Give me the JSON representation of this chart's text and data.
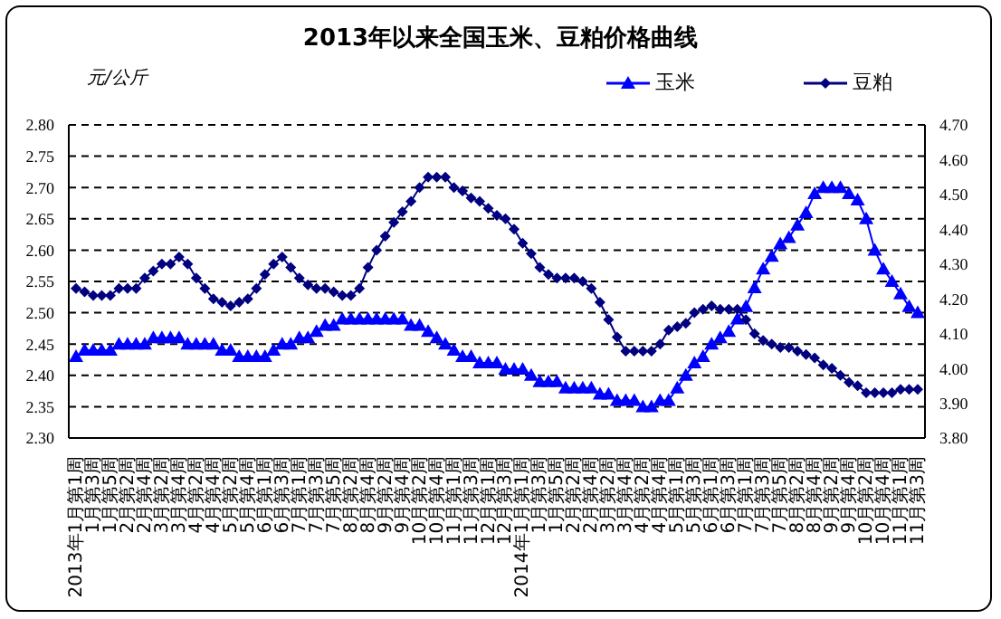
{
  "chart_data": {
    "type": "line",
    "title": "2013年以来全国玉米、豆粕价格曲线",
    "ylabel": "元/公斤",
    "categories": [
      "2013年1月第1周",
      null,
      "1月第3周",
      null,
      "1月第5周",
      null,
      "2月第2周",
      null,
      "2月第4周",
      null,
      "3月第2周",
      null,
      "3月第4周",
      null,
      "4月第2周",
      null,
      "4月第4周",
      null,
      "5月第2周",
      null,
      "5月第4周",
      null,
      "6月第1周",
      null,
      "6月第3周",
      null,
      "7月第1周",
      null,
      "7月第3周",
      null,
      "7月第5周",
      null,
      "8月第2周",
      null,
      "8月第4周",
      null,
      "9月第2周",
      null,
      "9月第4周",
      null,
      "10月第2周",
      null,
      "10月第4周",
      null,
      "11月第1周",
      null,
      "11月第3周",
      null,
      "12月第1周",
      null,
      "12月第3周",
      null,
      "2014年1月第1周",
      null,
      "1月第3周",
      null,
      "1月第5周",
      null,
      "2月第2周",
      null,
      "2月第4周",
      null,
      "3月第2周",
      null,
      "3月第4周",
      null,
      "4月第2周",
      null,
      "4月第4周",
      null,
      "5月第1周",
      null,
      "5月第3周",
      null,
      "6月第1周",
      null,
      "6月第3周",
      null,
      "7月第1周",
      null,
      "7月第3周",
      null,
      "7月第5周",
      null,
      "8月第2周",
      null,
      "8月第4周",
      null,
      "9月第2周",
      null,
      "9月第4周",
      null,
      "10月第2周",
      null,
      "10月第4周",
      null,
      "11月第1周",
      null,
      "11月第3周"
    ],
    "series": [
      {
        "name": "玉米",
        "color": "#0000ff",
        "marker": "triangle",
        "values": [
          2.43,
          2.44,
          2.44,
          2.44,
          2.44,
          2.45,
          2.45,
          2.45,
          2.45,
          2.46,
          2.46,
          2.46,
          2.46,
          2.45,
          2.45,
          2.45,
          2.45,
          2.44,
          2.44,
          2.43,
          2.43,
          2.43,
          2.43,
          2.44,
          2.45,
          2.45,
          2.46,
          2.46,
          2.47,
          2.48,
          2.48,
          2.49,
          2.49,
          2.49,
          2.49,
          2.49,
          2.49,
          2.49,
          2.49,
          2.48,
          2.48,
          2.47,
          2.46,
          2.45,
          2.44,
          2.43,
          2.43,
          2.42,
          2.42,
          2.42,
          2.41,
          2.41,
          2.41,
          2.4,
          2.39,
          2.39,
          2.39,
          2.38,
          2.38,
          2.38,
          2.38,
          2.37,
          2.37,
          2.36,
          2.36,
          2.36,
          2.35,
          2.35,
          2.36,
          2.36,
          2.38,
          2.4,
          2.42,
          2.43,
          2.45,
          2.46,
          2.47,
          2.49,
          2.51,
          2.54,
          2.57,
          2.59,
          2.61,
          2.62,
          2.64,
          2.66,
          2.69,
          2.7,
          2.7,
          2.7,
          2.69,
          2.68,
          2.65,
          2.6,
          2.57,
          2.55,
          2.53,
          2.51,
          2.5
        ]
      },
      {
        "name": "豆粕",
        "color": "#000080",
        "marker": "diamond",
        "axis": "y2",
        "values": [
          4.23,
          4.22,
          4.21,
          4.21,
          4.21,
          4.23,
          4.23,
          4.23,
          4.26,
          4.28,
          4.3,
          4.3,
          4.32,
          4.3,
          4.26,
          4.23,
          4.2,
          4.19,
          4.18,
          4.19,
          4.2,
          4.23,
          4.27,
          4.3,
          4.32,
          4.29,
          4.26,
          4.24,
          4.23,
          4.23,
          4.22,
          4.21,
          4.21,
          4.23,
          4.29,
          4.34,
          4.38,
          4.42,
          4.45,
          4.48,
          4.52,
          4.55,
          4.55,
          4.55,
          4.52,
          4.51,
          4.49,
          4.48,
          4.46,
          4.44,
          4.43,
          4.4,
          4.36,
          4.33,
          4.29,
          4.27,
          4.26,
          4.26,
          4.26,
          4.25,
          4.23,
          4.19,
          4.14,
          4.09,
          4.05,
          4.05,
          4.05,
          4.05,
          4.07,
          4.11,
          4.12,
          4.13,
          4.16,
          4.17,
          4.18,
          4.17,
          4.17,
          4.17,
          4.14,
          4.1,
          4.08,
          4.07,
          4.06,
          4.06,
          4.05,
          4.04,
          4.03,
          4.01,
          4.0,
          3.98,
          3.96,
          3.95,
          3.93,
          3.93,
          3.93,
          3.93,
          3.94,
          3.94,
          3.94
        ]
      }
    ],
    "ylim": [
      2.3,
      2.8
    ],
    "yticks": [
      {
        "value": 2.3,
        "label": "2.30"
      },
      {
        "value": 2.35,
        "label": "2.35"
      },
      {
        "value": 2.4,
        "label": "2.40"
      },
      {
        "value": 2.45,
        "label": "2.45"
      },
      {
        "value": 2.5,
        "label": "2.50"
      },
      {
        "value": 2.55,
        "label": "2.55"
      },
      {
        "value": 2.6,
        "label": "2.60"
      },
      {
        "value": 2.65,
        "label": "2.65"
      },
      {
        "value": 2.7,
        "label": "2.70"
      },
      {
        "value": 2.75,
        "label": "2.75"
      },
      {
        "value": 2.8,
        "label": "2.80"
      }
    ],
    "y2lim": [
      3.8,
      4.7
    ],
    "y2ticks": [
      {
        "value": 3.8,
        "label": "3.80"
      },
      {
        "value": 3.9,
        "label": "3.90"
      },
      {
        "value": 4.0,
        "label": "4.00"
      },
      {
        "value": 4.1,
        "label": "4.10"
      },
      {
        "value": 4.2,
        "label": "4.20"
      },
      {
        "value": 4.3,
        "label": "4.30"
      },
      {
        "value": 4.4,
        "label": "4.40"
      },
      {
        "value": 4.5,
        "label": "4.50"
      },
      {
        "value": 4.6,
        "label": "4.60"
      },
      {
        "value": 4.7,
        "label": "4.70"
      }
    ],
    "grid": "y",
    "legend": "top right",
    "line_style": "solid"
  }
}
